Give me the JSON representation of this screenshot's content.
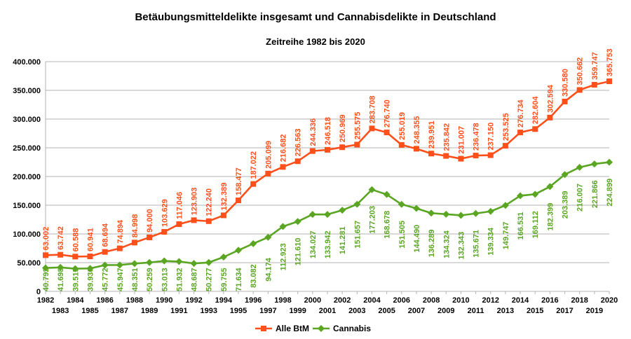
{
  "chart_data": {
    "type": "line",
    "title": "Betäubungsmitteldelikte insgesamt und Cannabisdelikte in Deutschland",
    "subtitle": "Zeitreihe 1982 bis 2020",
    "ylim": [
      0,
      400000
    ],
    "yticks": [
      0,
      50000,
      100000,
      150000,
      200000,
      250000,
      300000,
      350000,
      400000
    ],
    "ytick_labels": [
      "0",
      "50.000",
      "100.000",
      "150.000",
      "200.000",
      "250.000",
      "300.000",
      "350.000",
      "400.000"
    ],
    "grid": true,
    "legend_position": "bottom",
    "x": [
      "1982",
      "1983",
      "1984",
      "1985",
      "1986",
      "1987",
      "1988",
      "1989",
      "1990",
      "1991",
      "1992",
      "1993",
      "1994",
      "1995",
      "1996",
      "1997",
      "1998",
      "1999",
      "2000",
      "2001",
      "2002",
      "2003",
      "2004",
      "2005",
      "2006",
      "2007",
      "2008",
      "2009",
      "2010",
      "2011",
      "2012",
      "2013",
      "2014",
      "2015",
      "2016",
      "2017",
      "2018",
      "2019",
      "2020"
    ],
    "series": [
      {
        "name": "Alle BtM",
        "color": "#ff4f1a",
        "values": [
          63002,
          63742,
          60588,
          60941,
          68694,
          74894,
          84998,
          94000,
          103629,
          117046,
          123903,
          122240,
          132389,
          158477,
          187022,
          205099,
          216682,
          226563,
          244336,
          246518,
          250969,
          255575,
          283708,
          276740,
          255019,
          248355,
          239951,
          235842,
          231007,
          236478,
          237150,
          253525,
          276734,
          282604,
          302594,
          330580,
          350662,
          359747,
          365753
        ],
        "labels": [
          "63.002",
          "63.742",
          "60.588",
          "60.941",
          "68.694",
          "74.894",
          "84.998",
          "94.000",
          "103.629",
          "117.046",
          "123.903",
          "122.240",
          "132.389",
          "158.477",
          "187.022",
          "205.099",
          "216.682",
          "226.563",
          "244.336",
          "246.518",
          "250.969",
          "255.575",
          "283.708",
          "276.740",
          "255.019",
          "248.355",
          "239.951",
          "235.842",
          "231.007",
          "236.478",
          "237.150",
          "253.525",
          "276.734",
          "282.604",
          "302.594",
          "330.580",
          "350.662",
          "359.747",
          "365.753"
        ]
      },
      {
        "name": "Cannabis",
        "color": "#5aa623",
        "values": [
          40792,
          41698,
          39515,
          39936,
          45772,
          45947,
          48351,
          50259,
          53013,
          51932,
          48687,
          50277,
          59755,
          71634,
          83082,
          94174,
          112923,
          121610,
          134027,
          133942,
          141281,
          151657,
          177203,
          168678,
          151505,
          144490,
          136289,
          134324,
          132343,
          135671,
          139334,
          149747,
          166531,
          169112,
          182399,
          203389,
          216007,
          221866,
          224899
        ],
        "labels": [
          "40.792",
          "41.698",
          "39.515",
          "39.936",
          "45.772",
          "45.947",
          "48.351",
          "50.259",
          "53.013",
          "51.932",
          "48.687",
          "50.277",
          "59.755",
          "71.634",
          "83.082",
          "94.174",
          "112.923",
          "121.610",
          "134.027",
          "133.942",
          "141.281",
          "151.657",
          "177.203",
          "168.678",
          "151.505",
          "144.490",
          "136.289",
          "134.324",
          "132.343",
          "135.671",
          "139.334",
          "149.747",
          "166.531",
          "169.112",
          "182.399",
          "203.389",
          "216.007",
          "221.866",
          "224.899"
        ]
      }
    ]
  }
}
